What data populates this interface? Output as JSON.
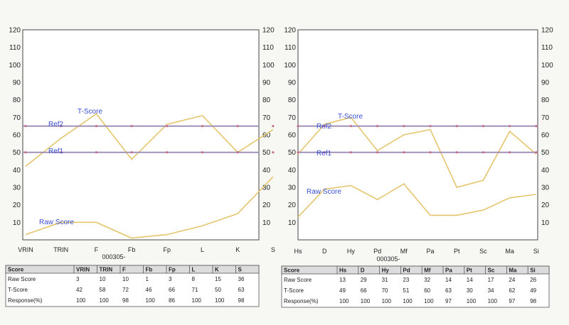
{
  "colors": {
    "score_line": "#e5c56e",
    "ref_line": "#9a8ab5",
    "label_text": "#3a4fd0",
    "frame": "#444444",
    "table_header_bg": "#dcdcdc"
  },
  "chart_data": [
    {
      "type": "line",
      "ylim": [
        0,
        120
      ],
      "yticks": [
        10,
        20,
        30,
        40,
        50,
        60,
        70,
        80,
        90,
        100,
        110,
        120
      ],
      "categories": [
        "VRIN",
        "TRIN",
        "F",
        "Fb",
        "Fp",
        "L",
        "K",
        "S"
      ],
      "subtitle": "000305-",
      "series": [
        {
          "name": "T-Score",
          "values": [
            42,
            58,
            72,
            46,
            66,
            71,
            50,
            63
          ]
        },
        {
          "name": "Raw Score",
          "values": [
            3,
            10,
            10,
            1,
            3,
            8,
            15,
            36
          ]
        },
        {
          "name": "Ref2",
          "values": [
            65,
            65,
            65,
            65,
            65,
            65,
            65,
            65
          ]
        },
        {
          "name": "Ref1",
          "values": [
            50,
            50,
            50,
            50,
            50,
            50,
            50,
            50
          ]
        }
      ],
      "table": {
        "header": [
          "Score",
          "VRIN",
          "TRIN",
          "F",
          "Fb",
          "Fp",
          "L",
          "K",
          "S"
        ],
        "rows": [
          [
            "Raw Score",
            "3",
            "10",
            "10",
            "1",
            "3",
            "8",
            "15",
            "36"
          ],
          [
            "T-Score",
            "42",
            "58",
            "72",
            "46",
            "66",
            "71",
            "50",
            "63"
          ],
          [
            "Response(%)",
            "100",
            "100",
            "98",
            "100",
            "86",
            "100",
            "100",
            "98"
          ]
        ]
      }
    },
    {
      "type": "line",
      "ylim": [
        0,
        120
      ],
      "yticks": [
        10,
        20,
        30,
        40,
        50,
        60,
        70,
        80,
        90,
        100,
        110,
        120
      ],
      "categories": [
        "Hs",
        "D",
        "Hy",
        "Pd",
        "Mf",
        "Pa",
        "Pt",
        "Sc",
        "Ma",
        "Si"
      ],
      "subtitle": "000305-",
      "series": [
        {
          "name": "T-Score",
          "values": [
            49,
            66,
            70,
            51,
            60,
            63,
            30,
            34,
            62,
            49
          ]
        },
        {
          "name": "Raw Score",
          "values": [
            13,
            29,
            31,
            23,
            32,
            14,
            14,
            17,
            24,
            26
          ]
        },
        {
          "name": "Ref2",
          "values": [
            65,
            65,
            65,
            65,
            65,
            65,
            65,
            65,
            65,
            65
          ]
        },
        {
          "name": "Ref1",
          "values": [
            50,
            50,
            50,
            50,
            50,
            50,
            50,
            50,
            50,
            50
          ]
        }
      ],
      "table": {
        "header": [
          "Score",
          "Hs",
          "D",
          "Hy",
          "Pd",
          "Mf",
          "Pa",
          "Pt",
          "Sc",
          "Ma",
          "Si"
        ],
        "rows": [
          [
            "Raw Score",
            "13",
            "29",
            "31",
            "23",
            "32",
            "14",
            "14",
            "17",
            "24",
            "26"
          ],
          [
            "T-Score",
            "49",
            "66",
            "70",
            "51",
            "60",
            "63",
            "30",
            "34",
            "62",
            "49"
          ],
          [
            "Response(%)",
            "100",
            "100",
            "100",
            "100",
            "100",
            "97",
            "100",
            "100",
            "97",
            "98"
          ]
        ]
      }
    }
  ]
}
